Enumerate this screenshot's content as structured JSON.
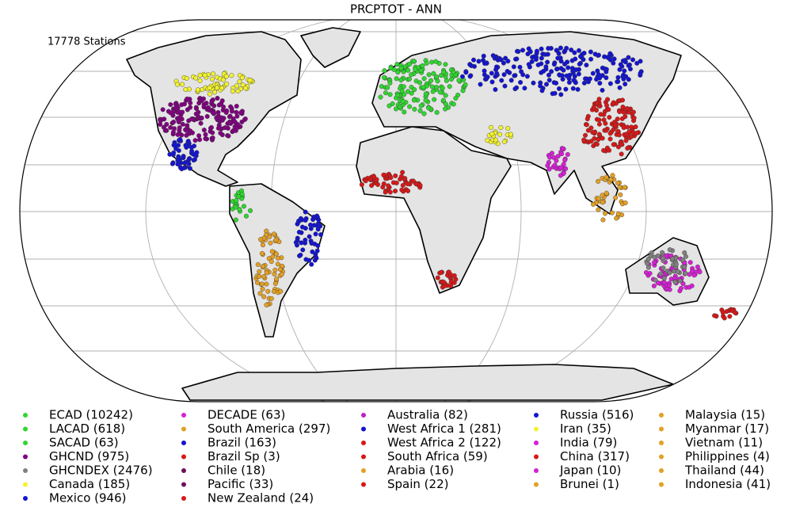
{
  "title": "PRCPTOT - ANN",
  "station_count": "17778 Stations",
  "legend": [
    {
      "label": "ECAD (10242)",
      "color": "#2fd62f"
    },
    {
      "label": "LACAD (618)",
      "color": "#2fd62f"
    },
    {
      "label": "SACAD (63)",
      "color": "#2fd62f"
    },
    {
      "label": "GHCND (975)",
      "color": "#800080"
    },
    {
      "label": "GHCNDEX (2476)",
      "color": "#808080"
    },
    {
      "label": "Canada (185)",
      "color": "#f2f230"
    },
    {
      "label": "Mexico (946)",
      "color": "#1414d2"
    },
    {
      "label": "DECADE (63)",
      "color": "#d81fd8"
    },
    {
      "label": "South America (297)",
      "color": "#e4a024"
    },
    {
      "label": "Brazil (163)",
      "color": "#1414d2"
    },
    {
      "label": "Brazil Sp (3)",
      "color": "#d81818"
    },
    {
      "label": "Chile (18)",
      "color": "#701060"
    },
    {
      "label": "Pacific (33)",
      "color": "#701060"
    },
    {
      "label": "New Zealand (24)",
      "color": "#d81818"
    },
    {
      "label": "Australia (82)",
      "color": "#c020c8"
    },
    {
      "label": "West Africa 1 (281)",
      "color": "#1414d2"
    },
    {
      "label": "West Africa 2 (122)",
      "color": "#d81818"
    },
    {
      "label": "South Africa (59)",
      "color": "#d81818"
    },
    {
      "label": "Arabia (16)",
      "color": "#e4a024"
    },
    {
      "label": "Spain (22)",
      "color": "#d81818"
    },
    {
      "label": "Russia (516)",
      "color": "#1414d2"
    },
    {
      "label": "Iran (35)",
      "color": "#f2f230"
    },
    {
      "label": "India (79)",
      "color": "#d81fd8"
    },
    {
      "label": "China (317)",
      "color": "#d81818"
    },
    {
      "label": "Japan (10)",
      "color": "#d81fd8"
    },
    {
      "label": "Brunei (1)",
      "color": "#e4a024"
    },
    {
      "label": "Malaysia (15)",
      "color": "#e4a024"
    },
    {
      "label": "Myanmar (17)",
      "color": "#e4a024"
    },
    {
      "label": "Vietnam (11)",
      "color": "#e4a024"
    },
    {
      "label": "Philippines (4)",
      "color": "#e4a024"
    },
    {
      "label": "Thailand (44)",
      "color": "#e4a024"
    },
    {
      "label": "Indonesia (41)",
      "color": "#e4a024"
    }
  ]
}
